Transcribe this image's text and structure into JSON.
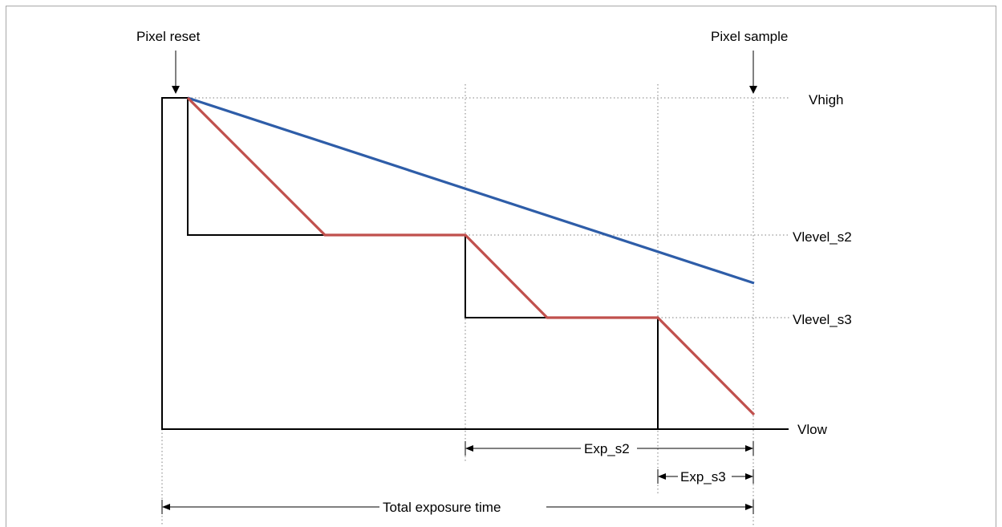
{
  "labels": {
    "pixel_reset": "Pixel reset",
    "pixel_sample": "Pixel sample",
    "vhigh": "Vhigh",
    "vlevel_s2": "Vlevel_s2",
    "vlevel_s3": "Vlevel_s3",
    "vlow": "Vlow",
    "exp_s2": "Exp_s2",
    "exp_s3": "Exp_s3",
    "total_exposure_time": "Total exposure time"
  },
  "colors": {
    "blue_line": "#2e5da8",
    "red_line": "#c0504d",
    "black": "#000000",
    "frame": "#a6a6a6",
    "dotted_guides": "#7f7f7f"
  }
}
